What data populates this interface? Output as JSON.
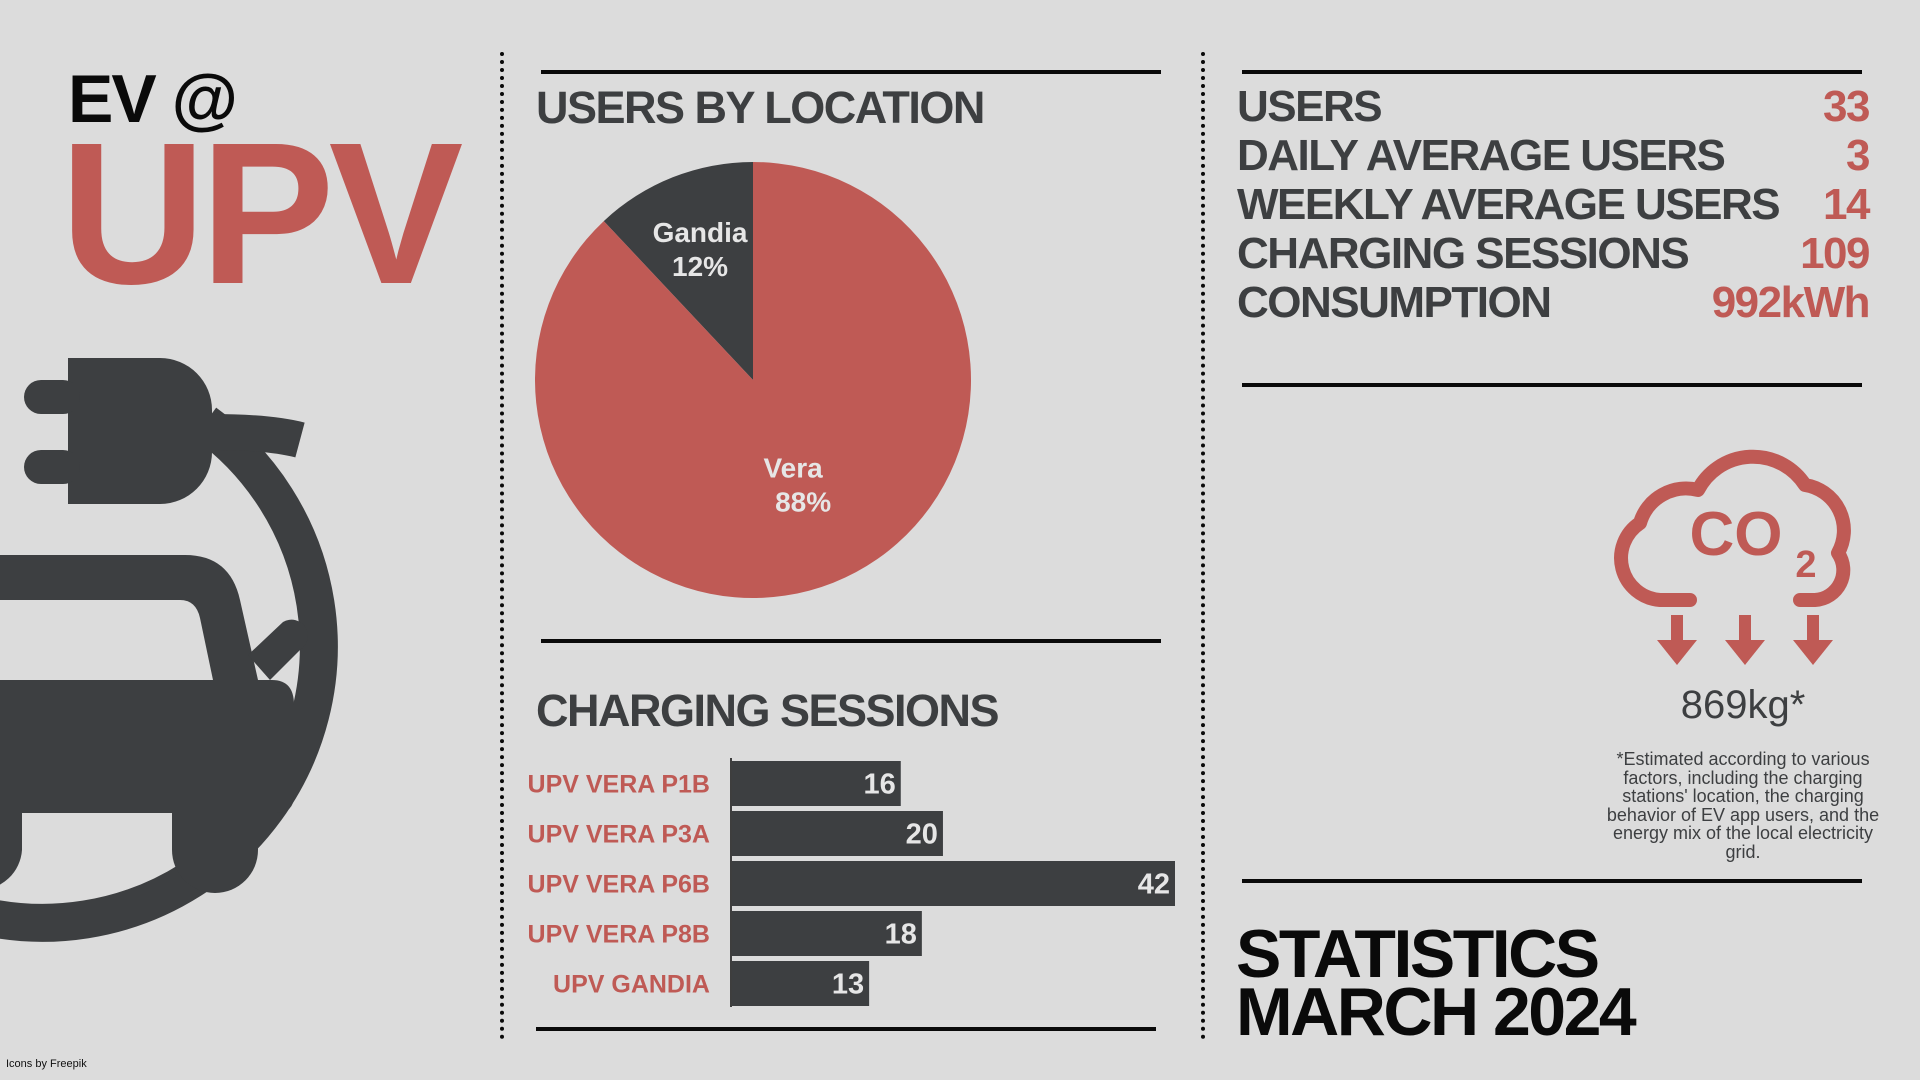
{
  "header": {
    "line1": "EV @",
    "line2": "UPV"
  },
  "colors": {
    "accent": "#bf5a55",
    "dark": "#3d3f41",
    "background": "#dcdcdc",
    "black": "#0a0a0a"
  },
  "icons": {
    "ev_charging": "ev-charging-car-icon",
    "co2": "co2-cloud-icon",
    "arrows": "down-arrow-icon"
  },
  "stats": [
    {
      "label": "USERS",
      "value": "33"
    },
    {
      "label": "DAILY AVERAGE USERS",
      "value": "3"
    },
    {
      "label": "WEEKLY AVERAGE USERS",
      "value": "14"
    },
    {
      "label": "CHARGING SESSIONS",
      "value": "109"
    },
    {
      "label": "CONSUMPTION",
      "value": "992kWh"
    }
  ],
  "co2": {
    "value": "869kg*",
    "note": "*Estimated according to various factors, including the charging stations' location, the charging behavior of EV app users, and the energy mix of the local electricity grid."
  },
  "footer": {
    "line1": "STATISTICS",
    "line2": "MARCH 2024",
    "credit": "Icons by Freepik"
  },
  "chart_data": [
    {
      "type": "pie",
      "title": "USERS BY LOCATION",
      "slices": [
        {
          "label": "Vera",
          "value": 88,
          "value_label": "88%",
          "color": "#bf5a55"
        },
        {
          "label": "Gandia",
          "value": 12,
          "value_label": "12%",
          "color": "#3d3f41"
        }
      ]
    },
    {
      "type": "bar",
      "orientation": "horizontal",
      "title": "CHARGING SESSIONS",
      "categories": [
        "UPV VERA P1B",
        "UPV VERA P3A",
        "UPV VERA P6B",
        "UPV VERA P8B",
        "UPV GANDIA"
      ],
      "values": [
        16,
        20,
        42,
        18,
        13
      ],
      "bar_color": "#3d3f41",
      "label_color": "#bf5a55"
    }
  ]
}
